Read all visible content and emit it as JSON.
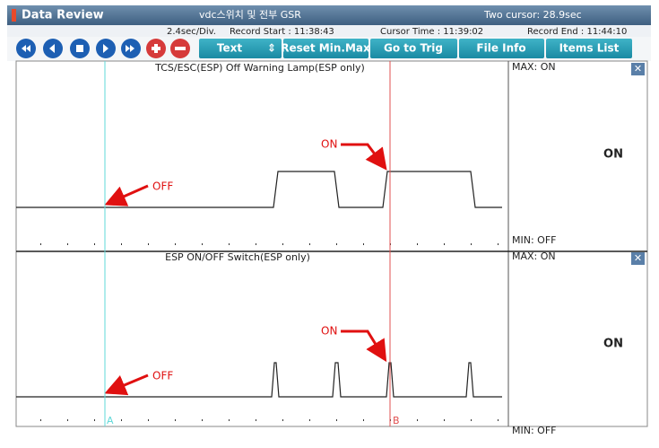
{
  "header": {
    "title": "Data Review",
    "file": "vdc스위치 및 전부 GSR",
    "cursor_span": "Two cursor: 28.9sec"
  },
  "info": {
    "scale": "2.4sec/Div.",
    "record_start": "Record Start : 11:38:43",
    "cursor_time": "Cursor Time : 11:39:02",
    "record_end": "Record End : 11:44:10"
  },
  "toolbar": {
    "buttons": [
      "Text",
      "Reset Min.Max",
      "Go to Trig",
      "File Info",
      "Items List"
    ]
  },
  "panels": [
    {
      "title": "TCS/ESC(ESP) Off Warning Lamp(ESP only)",
      "max": "MAX: ON",
      "min": "MIN: OFF",
      "current": "ON",
      "annotations": [
        "OFF",
        "ON"
      ]
    },
    {
      "title": "ESP ON/OFF Switch(ESP only)",
      "max": "MAX: ON",
      "min": "MIN: OFF",
      "current": "ON",
      "annotations": [
        "OFF",
        "ON"
      ]
    }
  ],
  "cursors": [
    "A",
    "B"
  ]
}
